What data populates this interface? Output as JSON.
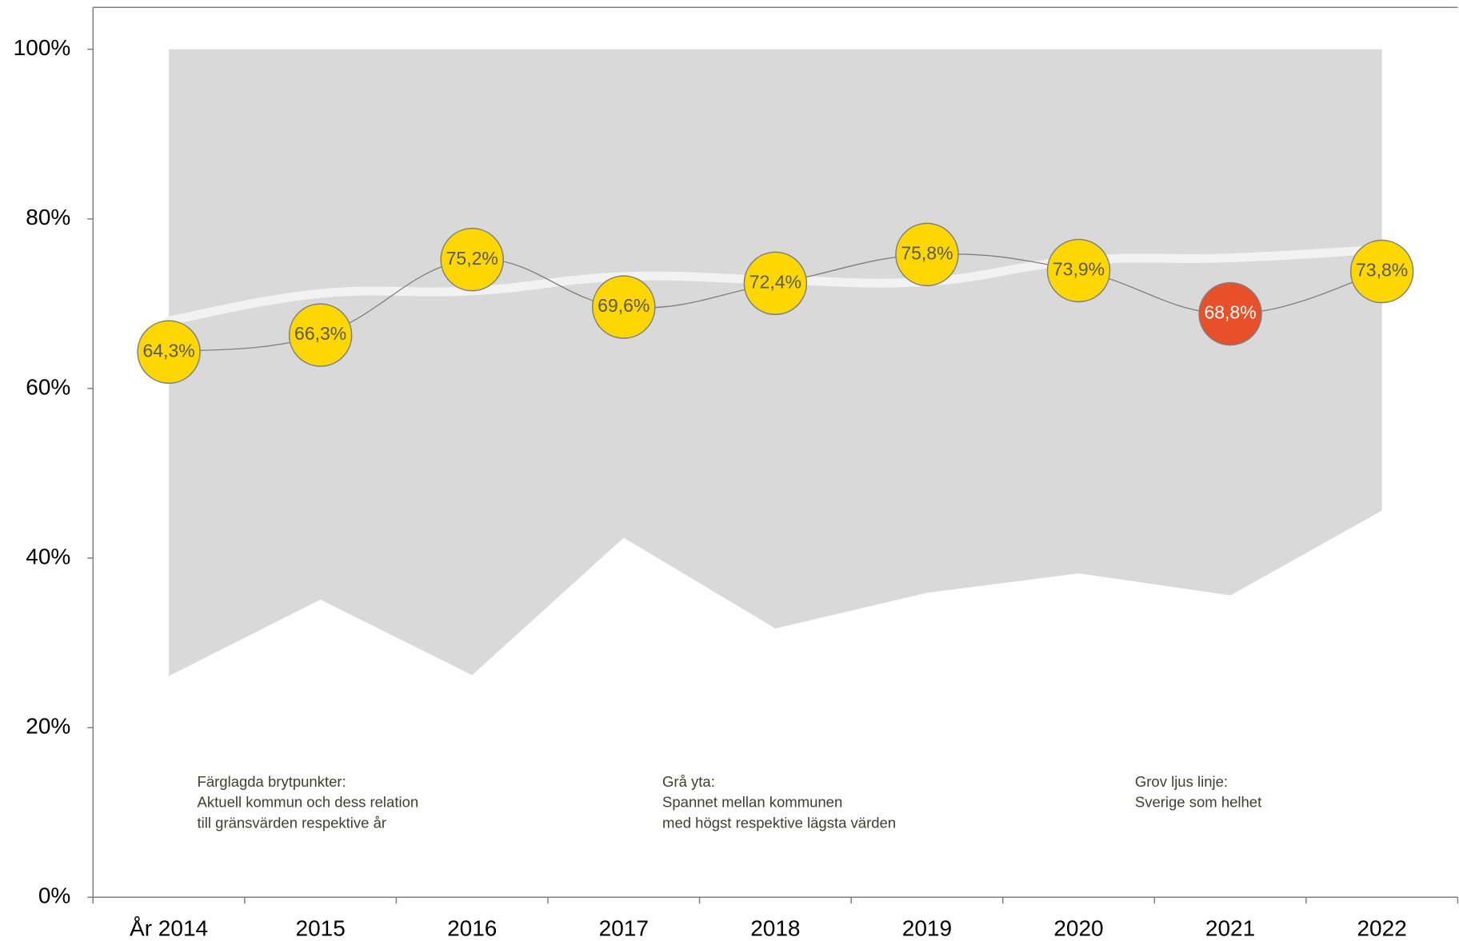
{
  "chart_data": {
    "type": "line",
    "categories": [
      "År 2014",
      "2015",
      "2016",
      "2017",
      "2018",
      "2019",
      "2020",
      "2021",
      "2022"
    ],
    "ylim": [
      0,
      100
    ],
    "yticks": [
      {
        "value": 0,
        "label": "0%"
      },
      {
        "value": 20,
        "label": "20%"
      },
      {
        "value": 40,
        "label": "40%"
      },
      {
        "value": 60,
        "label": "60%"
      },
      {
        "value": 80,
        "label": "80%"
      },
      {
        "value": 100,
        "label": "100%"
      }
    ],
    "range_color": "#d9d9d9",
    "range_max": [
      100,
      100,
      100,
      100,
      100,
      100,
      100,
      100,
      100
    ],
    "range_min": [
      26.1,
      35.1,
      26.2,
      42.4,
      31.7,
      35.9,
      38.2,
      35.6,
      45.6
    ],
    "sweden_color": "#f2f2f2",
    "sweden": [
      68.0,
      71.2,
      71.5,
      73.2,
      72.8,
      72.6,
      75.1,
      75.4,
      76.4
    ],
    "municipality": {
      "line_color": "#7f7f7f",
      "values": [
        64.3,
        66.3,
        75.2,
        69.6,
        72.4,
        75.8,
        73.9,
        68.8,
        73.8
      ],
      "value_labels": [
        "64,3%",
        "66,3%",
        "75,2%",
        "69,6%",
        "72,4%",
        "75,8%",
        "73,9%",
        "68,8%",
        "73,8%"
      ],
      "colors": [
        "#ffd700",
        "#ffd700",
        "#ffd700",
        "#ffd700",
        "#ffd700",
        "#ffd700",
        "#ffd700",
        "#e8502a",
        "#ffd700"
      ],
      "label_colors": [
        "#595959",
        "#595959",
        "#595959",
        "#595959",
        "#595959",
        "#595959",
        "#595959",
        "#ffffff",
        "#595959"
      ]
    },
    "annotations": [
      {
        "lines": [
          "Färglagda brytpunkter:",
          "Aktuell kommun och dess relation",
          "till gränsvärden respektive år"
        ]
      },
      {
        "lines": [
          "Grå yta:",
          "Spannet mellan kommunen",
          "med högst respektive lägsta värden"
        ]
      },
      {
        "lines": [
          "Grov ljus linje:",
          "Sverige som helhet"
        ]
      }
    ]
  }
}
